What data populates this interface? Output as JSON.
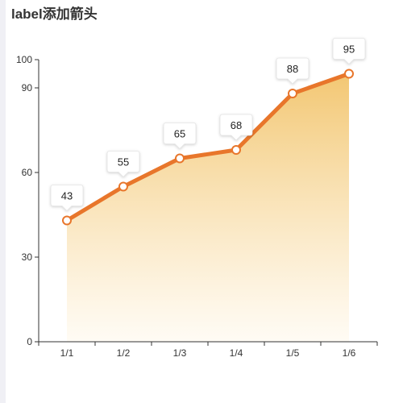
{
  "chart_data": {
    "type": "area",
    "title": "label添加箭头",
    "categories": [
      "1/1",
      "1/2",
      "1/3",
      "1/4",
      "1/5",
      "1/6"
    ],
    "series": [
      {
        "values": [
          43,
          55,
          65,
          68,
          88,
          95
        ]
      }
    ],
    "yticks": [
      0,
      30,
      60,
      90,
      100
    ],
    "ylim": [
      0,
      100
    ],
    "xlabel": "",
    "ylabel": "",
    "grid": false,
    "data_labels": "callout-with-arrow",
    "colors": {
      "line": "#e8762b",
      "area_top": "#f2c46b",
      "area_bottom": "#fffaf0",
      "axis": "#333333"
    }
  }
}
